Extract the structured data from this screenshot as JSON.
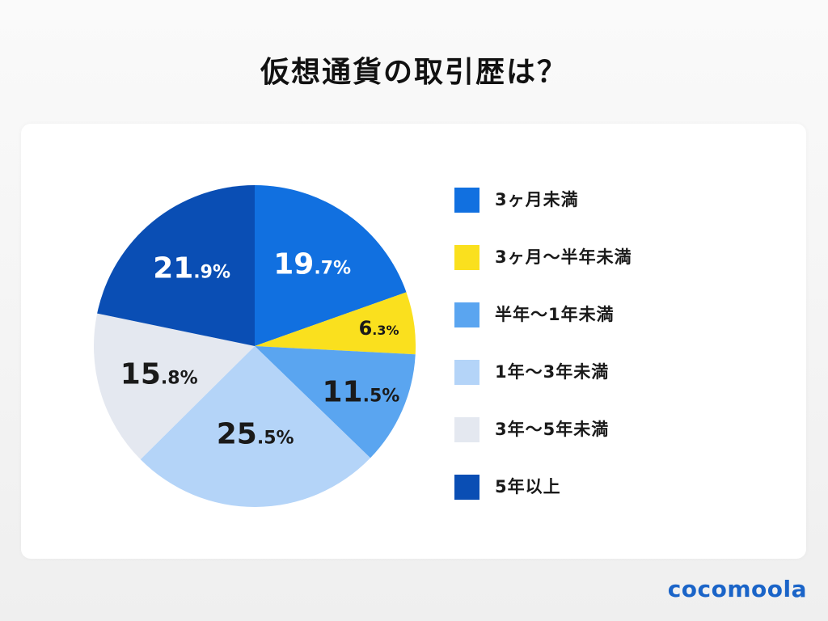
{
  "title": "仮想通貨の取引歴は？",
  "brand": "cocomoola",
  "chart_data": {
    "type": "pie",
    "title": "仮想通貨の取引歴は？",
    "start_angle_deg": 0,
    "direction": "clockwise",
    "legend_position": "right",
    "series": [
      {
        "label": "3ヶ月未満",
        "value": 19.7,
        "color": "#1170e0",
        "text_color": "#ffffff",
        "int": "19",
        "dec": ".7%"
      },
      {
        "label": "3ヶ月〜半年未満",
        "value": 6.3,
        "color": "#fae01e",
        "text_color": "#1a1a1a",
        "int": "6",
        "dec": ".3%"
      },
      {
        "label": "半年〜1年未満",
        "value": 11.5,
        "color": "#5aa5f0",
        "text_color": "#1a1a1a",
        "int": "11",
        "dec": ".5%"
      },
      {
        "label": "1年〜3年未満",
        "value": 25.5,
        "color": "#b4d4f8",
        "text_color": "#1a1a1a",
        "int": "25",
        "dec": ".5%"
      },
      {
        "label": "3年〜5年未満",
        "value": 15.8,
        "color": "#e4e8f0",
        "text_color": "#1a1a1a",
        "int": "15",
        "dec": ".8%"
      },
      {
        "label": "5年以上",
        "value": 21.9,
        "color": "#0a4eb4",
        "text_color": "#ffffff",
        "int": "21",
        "dec": ".9%"
      }
    ]
  }
}
